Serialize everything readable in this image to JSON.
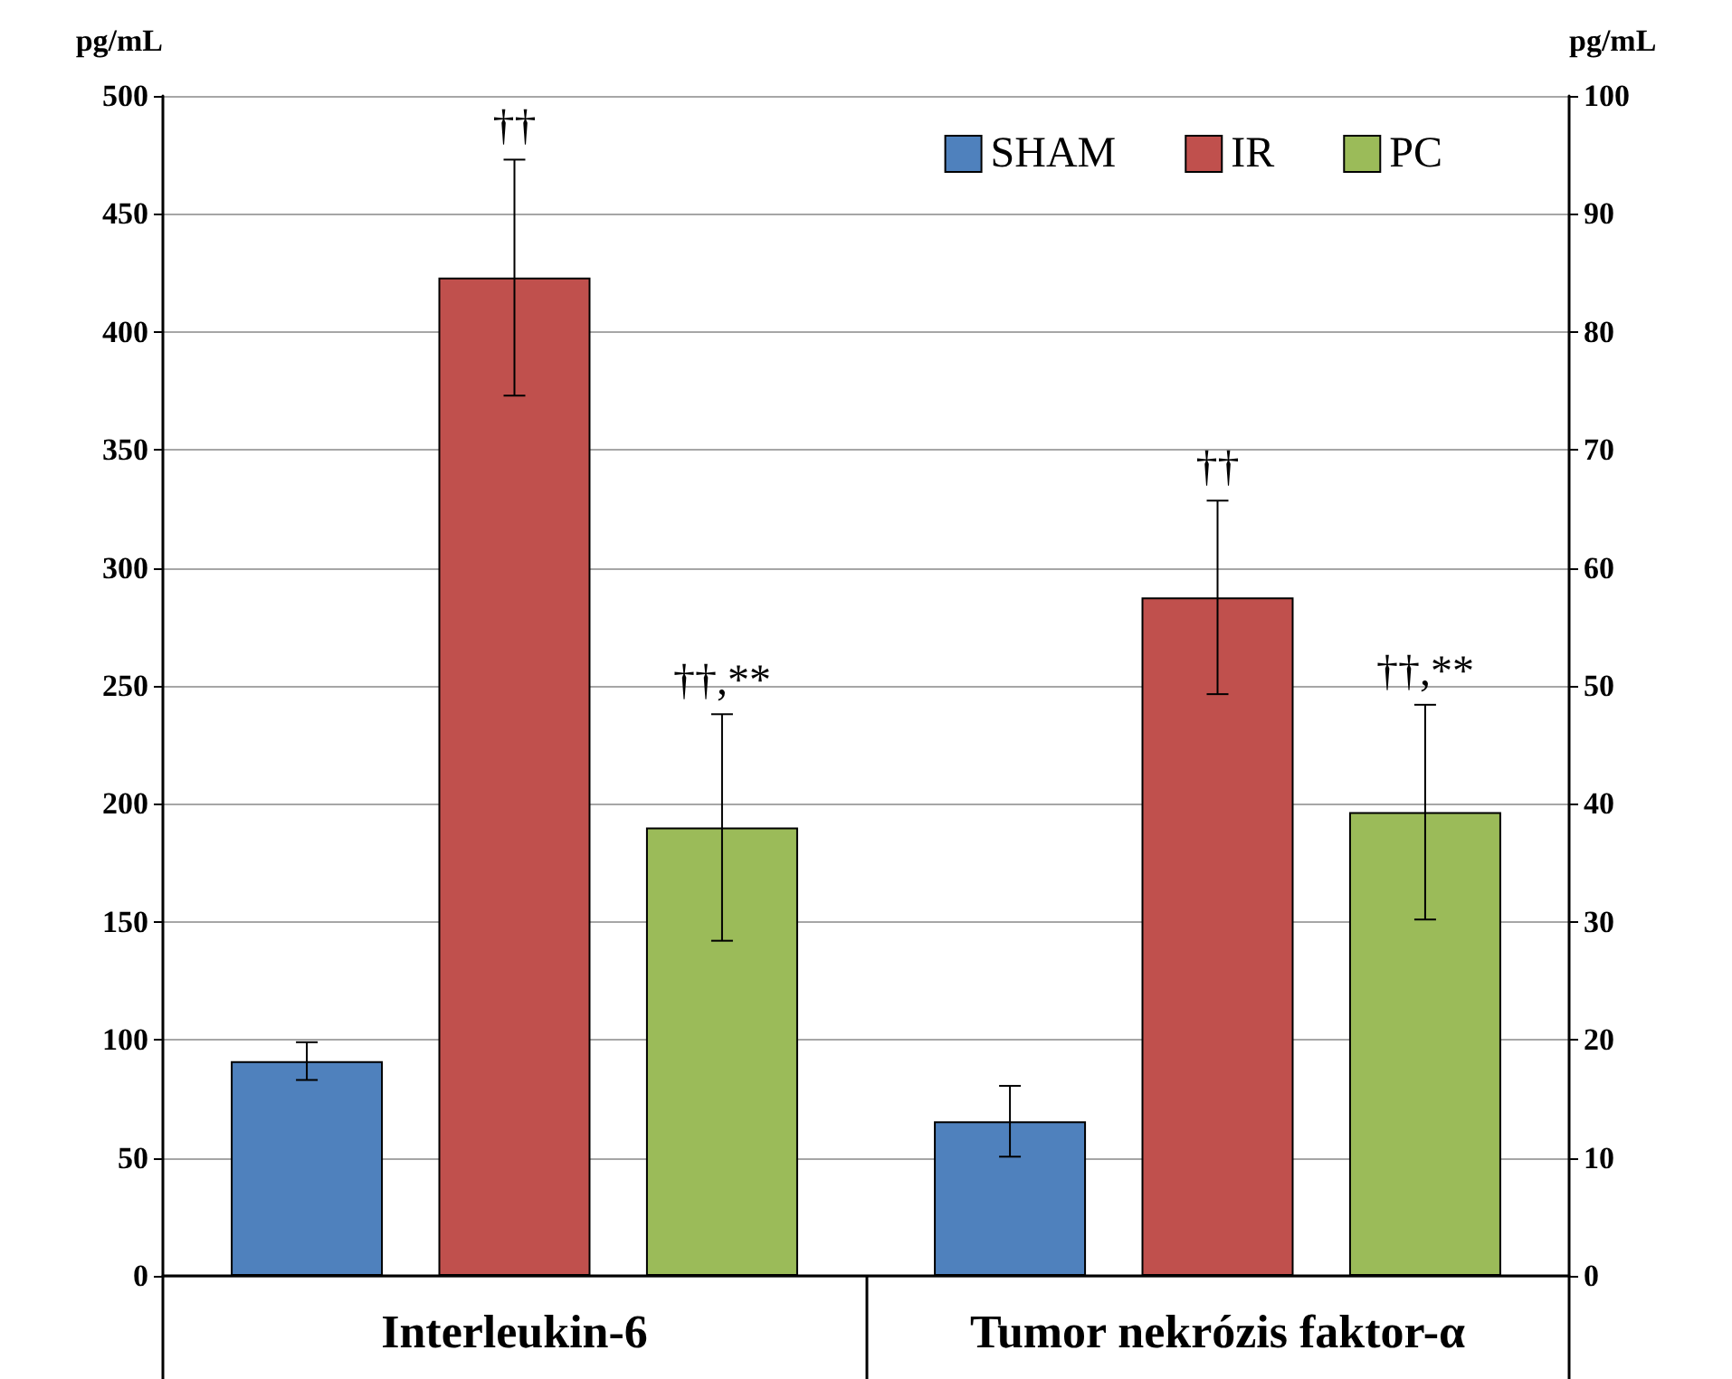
{
  "chart_data": {
    "type": "bar",
    "categories": [
      "Interleukin-6",
      "Tumor nekrózis faktor-α"
    ],
    "ylabel": "pg/mL",
    "y2label": "pg/mL",
    "ylim": [
      0,
      500
    ],
    "yticks": [
      0,
      50,
      100,
      150,
      200,
      250,
      300,
      350,
      400,
      450,
      500
    ],
    "y2lim": [
      0,
      100
    ],
    "y2ticks": [
      0,
      10,
      20,
      30,
      40,
      50,
      60,
      70,
      80,
      90,
      100
    ],
    "grid": "y",
    "legend": "top right",
    "series": [
      {
        "name": "SHAM",
        "color": "#4f81bd",
        "values": [
          91,
          null
        ],
        "errors": [
          8,
          null
        ]
      },
      {
        "name": "IR",
        "color": "#c0504d",
        "values": [
          423,
          null
        ],
        "errors": [
          50,
          null
        ],
        "value_labels": [
          "††",
          null
        ]
      },
      {
        "name": "PC",
        "color": "#9bbb59",
        "values": [
          190,
          null
        ],
        "errors": [
          48,
          null
        ],
        "value_labels": [
          "††,**",
          null
        ]
      },
      {
        "color": "#4f81bd",
        "values": [
          null,
          13.1
        ],
        "errors": [
          null,
          3
        ],
        "axis": "y2"
      },
      {
        "color": "#c0504d",
        "values": [
          null,
          57.5
        ],
        "errors": [
          null,
          8.2
        ],
        "axis": "y2",
        "value_labels": [
          null,
          "††"
        ]
      },
      {
        "color": "#9bbb59",
        "values": [
          null,
          39.3
        ],
        "errors": [
          null,
          9.1
        ],
        "axis": "y2",
        "value_labels": [
          null,
          "††,**"
        ]
      }
    ]
  }
}
